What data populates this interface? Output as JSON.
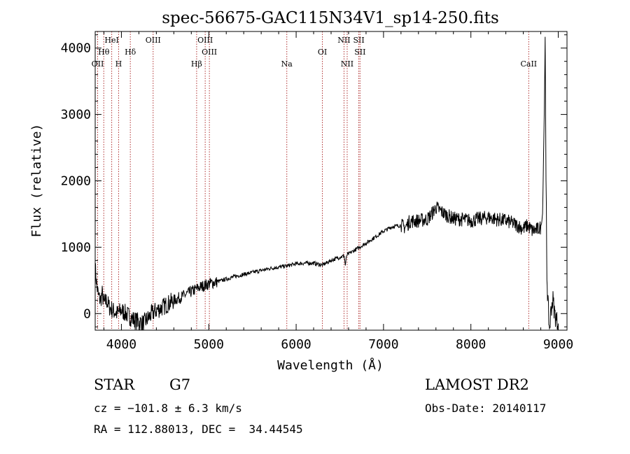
{
  "chart_data": {
    "type": "line",
    "title": "spec-56675-GAC115N34V1_sp14-250.fits",
    "xlabel": "Wavelength (Å)",
    "ylabel": "Flux (relative)",
    "xlim": [
      3700,
      9100
    ],
    "ylim": [
      -250,
      4250
    ],
    "x_ticks": [
      4000,
      5000,
      6000,
      7000,
      8000,
      9000
    ],
    "y_ticks": [
      0,
      1000,
      2000,
      3000,
      4000
    ],
    "grid": false,
    "series": [
      {
        "x": [
          3700,
          3720,
          3740,
          3760,
          3780,
          3800,
          3830,
          3860,
          3900,
          3950,
          4000,
          4050,
          4100,
          4150,
          4200,
          4250,
          4300,
          4350,
          4400,
          4450,
          4500,
          4600,
          4700,
          4800,
          4900,
          5000,
          5100,
          5200,
          5300,
          5400,
          5500,
          5600,
          5700,
          5800,
          5900,
          6000,
          6100,
          6200,
          6300,
          6400,
          6500,
          6550,
          6563,
          6580,
          6600,
          6700,
          6800,
          6900,
          7000,
          7100,
          7200,
          7250,
          7300,
          7400,
          7500,
          7550,
          7600,
          7650,
          7700,
          7800,
          7900,
          8000,
          8100,
          8200,
          8300,
          8400,
          8500,
          8600,
          8650,
          8700,
          8750,
          8800,
          8820,
          8840,
          8850,
          8860,
          8870,
          8880,
          8900,
          8920,
          8940,
          8960,
          8980,
          9000
        ],
        "y": [
          700,
          400,
          250,
          200,
          300,
          150,
          200,
          100,
          50,
          0,
          50,
          0,
          -50,
          -100,
          -120,
          -150,
          -80,
          0,
          50,
          80,
          120,
          200,
          260,
          330,
          400,
          450,
          480,
          520,
          560,
          590,
          620,
          650,
          680,
          700,
          720,
          750,
          760,
          760,
          730,
          800,
          850,
          870,
          730,
          880,
          900,
          980,
          1060,
          1150,
          1240,
          1310,
          1330,
          1300,
          1390,
          1400,
          1420,
          1500,
          1600,
          1550,
          1500,
          1430,
          1420,
          1400,
          1430,
          1450,
          1420,
          1400,
          1350,
          1280,
          1330,
          1250,
          1260,
          1300,
          1500,
          3000,
          4200,
          2000,
          600,
          200,
          -250,
          100,
          200,
          0,
          -100,
          -150
        ]
      }
    ],
    "lines": [
      {
        "label": "OII",
        "x": 3728
      },
      {
        "label": "Hθ",
        "x": 3798
      },
      {
        "label": "HeI",
        "x": 3889
      },
      {
        "label": "H",
        "x": 3968
      },
      {
        "label": "Hδ",
        "x": 4102
      },
      {
        "label": "OIII",
        "x": 4363
      },
      {
        "label": "Hβ",
        "x": 4861
      },
      {
        "label": "OIII",
        "x": 4959
      },
      {
        "label": "OIII",
        "x": 5007
      },
      {
        "label": "Na",
        "x": 5893
      },
      {
        "label": "OI",
        "x": 6300
      },
      {
        "label": "NII",
        "x": 6548
      },
      {
        "label": "NII",
        "x": 6584
      },
      {
        "label": "SII",
        "x": 6717
      },
      {
        "label": "SII",
        "x": 6731
      },
      {
        "label": "CaII",
        "x": 8662
      }
    ]
  },
  "info": {
    "class": "STAR",
    "subclass": "G7",
    "survey": "LAMOST DR2",
    "cz": "cz = −101.8 ± 6.3 km/s",
    "obs_date": "Obs-Date: 20140117",
    "radec": "RA = 112.88013, DEC =  34.44545"
  },
  "colors": {
    "spectrum": "#000000",
    "line_marker": "#b03030",
    "background": "#ffffff"
  }
}
